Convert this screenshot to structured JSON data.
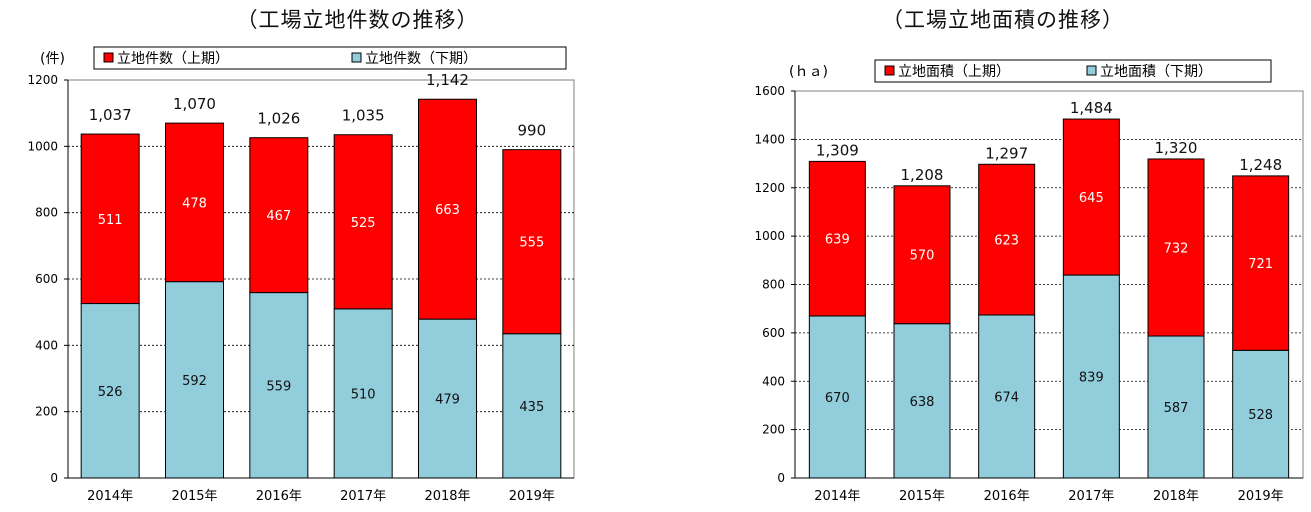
{
  "colors": {
    "upper": "#ff0000",
    "lower": "#92cddc",
    "bar_border": "#000000",
    "plot_border": "#808080",
    "grid": "#000000"
  },
  "chart_data": [
    {
      "type": "bar",
      "stacked": true,
      "title": "（工場立地件数の推移）",
      "unit_label": "(件)",
      "categories": [
        "2014年",
        "2015年",
        "2016年",
        "2017年",
        "2018年",
        "2019年"
      ],
      "series": [
        {
          "name": "立地件数（下期）",
          "values": [
            526,
            592,
            559,
            510,
            479,
            435
          ],
          "color": "#92cddc"
        },
        {
          "name": "立地件数（上期）",
          "values": [
            511,
            478,
            467,
            525,
            663,
            555
          ],
          "color": "#ff0000"
        }
      ],
      "totals": [
        1037,
        1070,
        1026,
        1035,
        1142,
        990
      ],
      "total_labels": [
        "1,037",
        "1,070",
        "1,026",
        "1,035",
        "1,142",
        "990"
      ],
      "ylim": [
        0,
        1200
      ],
      "yticks": [
        0,
        200,
        400,
        600,
        800,
        1000,
        1200
      ],
      "grid": true,
      "legend_entries": [
        "立地件数（上期）",
        "立地件数（下期）"
      ],
      "legend_position": "top"
    },
    {
      "type": "bar",
      "stacked": true,
      "title": "（工場立地面積の推移）",
      "unit_label": "(ｈａ)",
      "categories": [
        "2014年",
        "2015年",
        "2016年",
        "2017年",
        "2018年",
        "2019年"
      ],
      "series": [
        {
          "name": "立地面積（下期）",
          "values": [
            670,
            638,
            674,
            839,
            587,
            528
          ],
          "color": "#92cddc"
        },
        {
          "name": "立地面積（上期）",
          "values": [
            639,
            570,
            623,
            645,
            732,
            721
          ],
          "color": "#ff0000"
        }
      ],
      "totals": [
        1309,
        1208,
        1297,
        1484,
        1320,
        1248
      ],
      "total_labels": [
        "1,309",
        "1,208",
        "1,297",
        "1,484",
        "1,320",
        "1,248"
      ],
      "ylim": [
        0,
        1600
      ],
      "yticks": [
        0,
        200,
        400,
        600,
        800,
        1000,
        1200,
        1400,
        1600
      ],
      "grid": true,
      "legend_entries": [
        "立地面積（上期）",
        "立地面積（下期）"
      ],
      "legend_position": "top"
    }
  ]
}
